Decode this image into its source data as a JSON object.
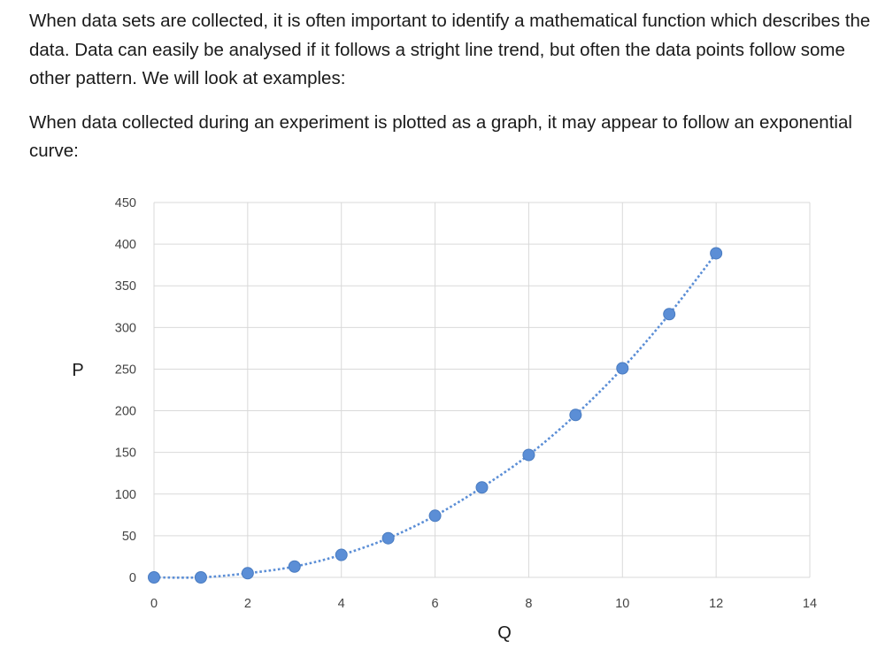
{
  "text": {
    "paragraph_1": "When data sets are collected, it is often important to identify a mathematical function which describes the data.  Data can easily be analysed if it follows a stright line trend, but often the data points follow some other pattern.  We will look at examples:",
    "paragraph_2": "When data collected during an experiment is plotted as a graph, it may appear to follow an exponential curve:"
  },
  "chart_data": {
    "type": "scatter",
    "title": "",
    "xlabel": "Q",
    "ylabel": "P",
    "xlim": [
      0,
      14
    ],
    "ylim": [
      0,
      450
    ],
    "x_ticks": [
      0,
      2,
      4,
      6,
      8,
      10,
      12,
      14
    ],
    "y_ticks": [
      0,
      50,
      100,
      150,
      200,
      250,
      300,
      350,
      400,
      450
    ],
    "grid": true,
    "legend": "none",
    "trendline": "dotted",
    "series": [
      {
        "x": [
          0,
          1,
          2,
          3,
          4,
          5,
          6,
          7,
          8,
          9,
          10,
          11,
          12
        ],
        "y": [
          0,
          0,
          5,
          13,
          27,
          47,
          74,
          108,
          147,
          195,
          251,
          316,
          389
        ],
        "color": "#5b8ed6"
      }
    ]
  }
}
